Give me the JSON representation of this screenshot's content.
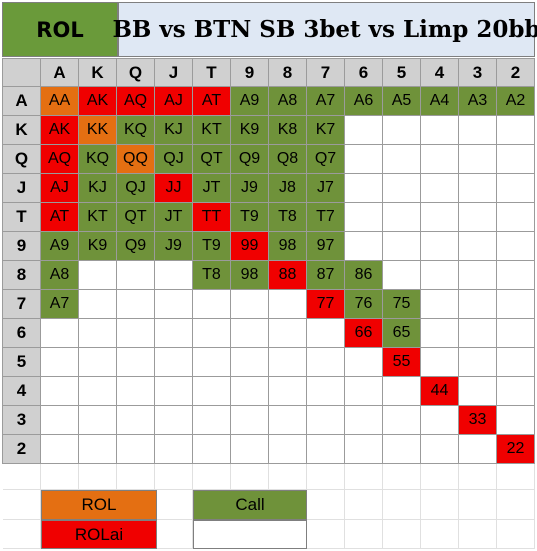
{
  "title": {
    "left": "ROL",
    "right": "BB vs BTN SB 3bet vs Limp 20bb"
  },
  "ranks": [
    "A",
    "K",
    "Q",
    "J",
    "T",
    "9",
    "8",
    "7",
    "6",
    "5",
    "4",
    "3",
    "2"
  ],
  "colors": {
    "header": "#d0d0d0",
    "call": "#6f923a",
    "rol": "#e46f12",
    "rolai": "#f00000",
    "blank": "#ffffff"
  },
  "grid": [
    [
      [
        "AA",
        "rol"
      ],
      [
        "AK",
        "rolai"
      ],
      [
        "AQ",
        "rolai"
      ],
      [
        "AJ",
        "rolai"
      ],
      [
        "AT",
        "rolai"
      ],
      [
        "A9",
        "call"
      ],
      [
        "A8",
        "call"
      ],
      [
        "A7",
        "call"
      ],
      [
        "A6",
        "call"
      ],
      [
        "A5",
        "call"
      ],
      [
        "A4",
        "call"
      ],
      [
        "A3",
        "call"
      ],
      [
        "A2",
        "call"
      ]
    ],
    [
      [
        "AK",
        "rolai"
      ],
      [
        "KK",
        "rol"
      ],
      [
        "KQ",
        "call"
      ],
      [
        "KJ",
        "call"
      ],
      [
        "KT",
        "call"
      ],
      [
        "K9",
        "call"
      ],
      [
        "K8",
        "call"
      ],
      [
        "K7",
        "call"
      ],
      [
        "",
        "blank"
      ],
      [
        "",
        "blank"
      ],
      [
        "",
        "blank"
      ],
      [
        "",
        "blank"
      ],
      [
        "",
        "blank"
      ]
    ],
    [
      [
        "AQ",
        "rolai"
      ],
      [
        "KQ",
        "call"
      ],
      [
        "QQ",
        "rol"
      ],
      [
        "QJ",
        "call"
      ],
      [
        "QT",
        "call"
      ],
      [
        "Q9",
        "call"
      ],
      [
        "Q8",
        "call"
      ],
      [
        "Q7",
        "call"
      ],
      [
        "",
        "blank"
      ],
      [
        "",
        "blank"
      ],
      [
        "",
        "blank"
      ],
      [
        "",
        "blank"
      ],
      [
        "",
        "blank"
      ]
    ],
    [
      [
        "AJ",
        "rolai"
      ],
      [
        "KJ",
        "call"
      ],
      [
        "QJ",
        "call"
      ],
      [
        "JJ",
        "rolai"
      ],
      [
        "JT",
        "call"
      ],
      [
        "J9",
        "call"
      ],
      [
        "J8",
        "call"
      ],
      [
        "J7",
        "call"
      ],
      [
        "",
        "blank"
      ],
      [
        "",
        "blank"
      ],
      [
        "",
        "blank"
      ],
      [
        "",
        "blank"
      ],
      [
        "",
        "blank"
      ]
    ],
    [
      [
        "AT",
        "rolai"
      ],
      [
        "KT",
        "call"
      ],
      [
        "QT",
        "call"
      ],
      [
        "JT",
        "call"
      ],
      [
        "TT",
        "rolai"
      ],
      [
        "T9",
        "call"
      ],
      [
        "T8",
        "call"
      ],
      [
        "T7",
        "call"
      ],
      [
        "",
        "blank"
      ],
      [
        "",
        "blank"
      ],
      [
        "",
        "blank"
      ],
      [
        "",
        "blank"
      ],
      [
        "",
        "blank"
      ]
    ],
    [
      [
        "A9",
        "call"
      ],
      [
        "K9",
        "call"
      ],
      [
        "Q9",
        "call"
      ],
      [
        "J9",
        "call"
      ],
      [
        "T9",
        "call"
      ],
      [
        "99",
        "rolai"
      ],
      [
        "98",
        "call"
      ],
      [
        "97",
        "call"
      ],
      [
        "",
        "blank"
      ],
      [
        "",
        "blank"
      ],
      [
        "",
        "blank"
      ],
      [
        "",
        "blank"
      ],
      [
        "",
        "blank"
      ]
    ],
    [
      [
        "A8",
        "call"
      ],
      [
        "",
        "blank"
      ],
      [
        "",
        "blank"
      ],
      [
        "",
        "blank"
      ],
      [
        "T8",
        "call"
      ],
      [
        "98",
        "call"
      ],
      [
        "88",
        "rolai"
      ],
      [
        "87",
        "call"
      ],
      [
        "86",
        "call"
      ],
      [
        "",
        "blank"
      ],
      [
        "",
        "blank"
      ],
      [
        "",
        "blank"
      ],
      [
        "",
        "blank"
      ]
    ],
    [
      [
        "A7",
        "call"
      ],
      [
        "",
        "blank"
      ],
      [
        "",
        "blank"
      ],
      [
        "",
        "blank"
      ],
      [
        "",
        "blank"
      ],
      [
        "",
        "blank"
      ],
      [
        "",
        "blank"
      ],
      [
        "77",
        "rolai"
      ],
      [
        "76",
        "call"
      ],
      [
        "75",
        "call"
      ],
      [
        "",
        "blank"
      ],
      [
        "",
        "blank"
      ],
      [
        "",
        "blank"
      ]
    ],
    [
      [
        "",
        "blank"
      ],
      [
        "",
        "blank"
      ],
      [
        "",
        "blank"
      ],
      [
        "",
        "blank"
      ],
      [
        "",
        "blank"
      ],
      [
        "",
        "blank"
      ],
      [
        "",
        "blank"
      ],
      [
        "",
        "blank"
      ],
      [
        "66",
        "rolai"
      ],
      [
        "65",
        "call"
      ],
      [
        "",
        "blank"
      ],
      [
        "",
        "blank"
      ],
      [
        "",
        "blank"
      ]
    ],
    [
      [
        "",
        "blank"
      ],
      [
        "",
        "blank"
      ],
      [
        "",
        "blank"
      ],
      [
        "",
        "blank"
      ],
      [
        "",
        "blank"
      ],
      [
        "",
        "blank"
      ],
      [
        "",
        "blank"
      ],
      [
        "",
        "blank"
      ],
      [
        "",
        "blank"
      ],
      [
        "55",
        "rolai"
      ],
      [
        "",
        "blank"
      ],
      [
        "",
        "blank"
      ],
      [
        "",
        "blank"
      ]
    ],
    [
      [
        "",
        "blank"
      ],
      [
        "",
        "blank"
      ],
      [
        "",
        "blank"
      ],
      [
        "",
        "blank"
      ],
      [
        "",
        "blank"
      ],
      [
        "",
        "blank"
      ],
      [
        "",
        "blank"
      ],
      [
        "",
        "blank"
      ],
      [
        "",
        "blank"
      ],
      [
        "",
        "blank"
      ],
      [
        "44",
        "rolai"
      ],
      [
        "",
        "blank"
      ],
      [
        "",
        "blank"
      ]
    ],
    [
      [
        "",
        "blank"
      ],
      [
        "",
        "blank"
      ],
      [
        "",
        "blank"
      ],
      [
        "",
        "blank"
      ],
      [
        "",
        "blank"
      ],
      [
        "",
        "blank"
      ],
      [
        "",
        "blank"
      ],
      [
        "",
        "blank"
      ],
      [
        "",
        "blank"
      ],
      [
        "",
        "blank"
      ],
      [
        "",
        "blank"
      ],
      [
        "33",
        "rolai"
      ],
      [
        "",
        "blank"
      ]
    ],
    [
      [
        "",
        "blank"
      ],
      [
        "",
        "blank"
      ],
      [
        "",
        "blank"
      ],
      [
        "",
        "blank"
      ],
      [
        "",
        "blank"
      ],
      [
        "",
        "blank"
      ],
      [
        "",
        "blank"
      ],
      [
        "",
        "blank"
      ],
      [
        "",
        "blank"
      ],
      [
        "",
        "blank"
      ],
      [
        "",
        "blank"
      ],
      [
        "",
        "blank"
      ],
      [
        "22",
        "rolai"
      ]
    ]
  ],
  "legend": {
    "rol": "ROL",
    "rolai": "ROLai",
    "call": "Call",
    "empty": ""
  }
}
